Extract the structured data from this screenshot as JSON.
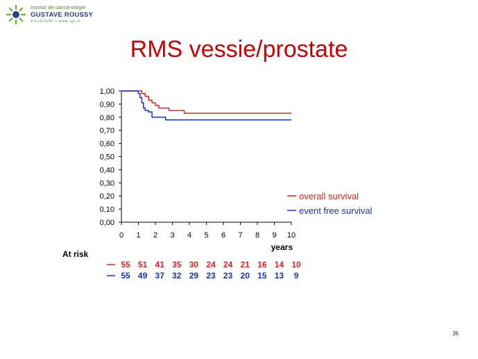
{
  "logo": {
    "line1": "Institut de cancérologie",
    "line2": "GUSTAVE ROUSSY",
    "line3": "VILLEJUIF • www.igr.fr"
  },
  "title": "RMS vessie/prostate",
  "page_number": "36",
  "chart_data": {
    "type": "line",
    "title": "",
    "xlabel": "years",
    "ylabel": "",
    "xlim": [
      0,
      10
    ],
    "ylim": [
      0,
      1
    ],
    "x_ticks": [
      0,
      1,
      2,
      3,
      4,
      5,
      6,
      7,
      8,
      9,
      10
    ],
    "y_ticks": [
      "0,00",
      "0,10",
      "0,20",
      "0,30",
      "0,40",
      "0,50",
      "0,60",
      "0,70",
      "0,80",
      "0,90",
      "1,00"
    ],
    "grid": false,
    "legend_position": "bottom-right",
    "series": [
      {
        "name": "overall survival",
        "color": "#e8201c",
        "points": [
          [
            0,
            1.0
          ],
          [
            1.2,
            1.0
          ],
          [
            1.2,
            0.98
          ],
          [
            1.4,
            0.98
          ],
          [
            1.4,
            0.96
          ],
          [
            1.6,
            0.96
          ],
          [
            1.6,
            0.93
          ],
          [
            1.8,
            0.93
          ],
          [
            1.8,
            0.91
          ],
          [
            2.0,
            0.91
          ],
          [
            2.0,
            0.89
          ],
          [
            2.2,
            0.89
          ],
          [
            2.2,
            0.87
          ],
          [
            2.8,
            0.87
          ],
          [
            2.8,
            0.85
          ],
          [
            3.7,
            0.85
          ],
          [
            3.7,
            0.83
          ],
          [
            10,
            0.83
          ]
        ]
      },
      {
        "name": "event free survival",
        "color": "#1a2ed0",
        "points": [
          [
            0,
            1.0
          ],
          [
            1.0,
            1.0
          ],
          [
            1.0,
            0.98
          ],
          [
            1.1,
            0.98
          ],
          [
            1.1,
            0.95
          ],
          [
            1.2,
            0.95
          ],
          [
            1.2,
            0.91
          ],
          [
            1.3,
            0.91
          ],
          [
            1.3,
            0.87
          ],
          [
            1.4,
            0.87
          ],
          [
            1.4,
            0.85
          ],
          [
            1.6,
            0.85
          ],
          [
            1.6,
            0.84
          ],
          [
            1.8,
            0.84
          ],
          [
            1.8,
            0.8
          ],
          [
            2.6,
            0.8
          ],
          [
            2.6,
            0.78
          ],
          [
            10,
            0.78
          ]
        ]
      }
    ],
    "at_risk": {
      "label": "At risk",
      "rows": [
        {
          "series": "overall survival",
          "color": "#e8201c",
          "values": [
            55,
            51,
            41,
            35,
            30,
            24,
            24,
            21,
            16,
            14,
            10
          ]
        },
        {
          "series": "event free survival",
          "color": "#1a2ed0",
          "values": [
            55,
            49,
            37,
            32,
            29,
            23,
            23,
            20,
            15,
            13,
            9
          ]
        }
      ]
    }
  }
}
